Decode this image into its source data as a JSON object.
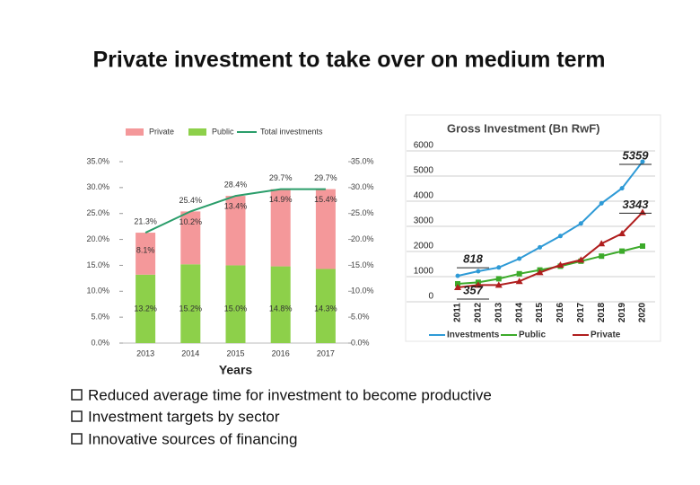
{
  "title": "Private investment to take over on medium term",
  "bullets": [
    "Reduced average time for investment to become productive",
    "Investment targets by sector",
    "Innovative sources of financing"
  ],
  "chart_data": [
    {
      "type": "bar",
      "stacked": true,
      "categories": [
        "2013",
        "2014",
        "2015",
        "2016",
        "2017"
      ],
      "xlabel": "Years",
      "series": [
        {
          "name": "Private",
          "type": "bar",
          "color": "#f4989a",
          "values": [
            8.1,
            10.2,
            13.4,
            14.9,
            15.4
          ],
          "value_labels": [
            "8.1%",
            "10.2%",
            "13.4%",
            "14.9%",
            "15.4%"
          ]
        },
        {
          "name": "Public",
          "type": "bar",
          "color": "#8dd04a",
          "values": [
            13.2,
            15.2,
            15.0,
            14.8,
            14.3
          ],
          "value_labels": [
            "13.2%",
            "15.2%",
            "15.0%",
            "14.8%",
            "14.3%"
          ]
        },
        {
          "name": "Total investments",
          "type": "line",
          "axis": "y2",
          "color": "#2a9d6a",
          "values": [
            21.3,
            25.4,
            28.4,
            29.7,
            29.7
          ],
          "value_labels": [
            "21.3%",
            "25.4%",
            "28.4%",
            "29.7%",
            "29.7%"
          ]
        }
      ],
      "ylim": [
        0,
        35
      ],
      "yticks": [
        {
          "value": 0,
          "label": "0.0%"
        },
        {
          "value": 5,
          "label": "5.0%"
        },
        {
          "value": 10,
          "label": "10.0%"
        },
        {
          "value": 15,
          "label": "15.0%"
        },
        {
          "value": 20,
          "label": "20.0%"
        },
        {
          "value": 25,
          "label": "25.0%"
        },
        {
          "value": 30,
          "label": "30.0%"
        },
        {
          "value": 35,
          "label": "35.0%"
        }
      ],
      "y2lim": [
        0,
        35
      ],
      "y2ticks": [
        {
          "value": 0,
          "label": "0.0%"
        },
        {
          "value": 5,
          "label": "5.0%"
        },
        {
          "value": 10,
          "label": "10.0%"
        },
        {
          "value": 15,
          "label": "15.0%"
        },
        {
          "value": 20,
          "label": "20.0%"
        },
        {
          "value": 25,
          "label": "25.0%"
        },
        {
          "value": 30,
          "label": "30.0%"
        },
        {
          "value": 35,
          "label": "35.0%"
        }
      ],
      "legend": "top"
    },
    {
      "type": "line",
      "title": "Gross Investment (Bn RwF)",
      "categories": [
        "2011",
        "2012",
        "2013",
        "2014",
        "2015",
        "2016",
        "2017",
        "2018",
        "2019",
        "2020"
      ],
      "series": [
        {
          "name": "Investments",
          "color": "#2e9ad6",
          "values": [
            818,
            1000,
            1150,
            1500,
            1950,
            2400,
            2900,
            3700,
            4300,
            5359
          ],
          "value_labels": [
            "818",
            null,
            null,
            null,
            null,
            null,
            null,
            null,
            null,
            "5359"
          ]
        },
        {
          "name": "Public",
          "color": "#3caa2a",
          "values": [
            500,
            560,
            700,
            900,
            1050,
            1200,
            1400,
            1600,
            1800,
            2000
          ]
        },
        {
          "name": "Private",
          "color": "#b01e1e",
          "values": [
            357,
            450,
            450,
            600,
            950,
            1250,
            1450,
            2100,
            2500,
            3343
          ],
          "value_labels": [
            "357",
            null,
            null,
            null,
            null,
            null,
            null,
            null,
            null,
            "3343"
          ]
        }
      ],
      "ylim": [
        0,
        6000
      ],
      "yticks": [
        0,
        1000,
        2000,
        3000,
        4000,
        5000,
        6000
      ],
      "grid": true,
      "legend": "bottom"
    }
  ]
}
